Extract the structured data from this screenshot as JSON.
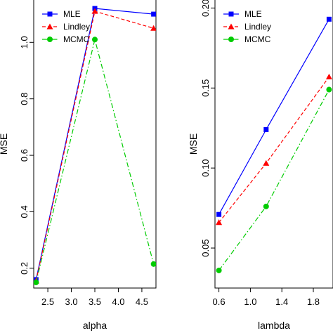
{
  "colors": {
    "MLE": "#0000ff",
    "Lindley": "#ff0000",
    "MCMC": "#00cc00",
    "axis": "#000000"
  },
  "chart_data": [
    {
      "type": "line",
      "xlabel": "alpha",
      "ylabel": "MSE",
      "xlim": [
        2.2,
        4.8
      ],
      "ylim": [
        0.13,
        1.15
      ],
      "xticks": [
        "2.5",
        "3.0",
        "3.5",
        "4.0",
        "4.5"
      ],
      "yticks": [
        "0.2",
        "0.4",
        "0.6",
        "0.8",
        "1.0"
      ],
      "x": [
        2.25,
        3.5,
        4.75
      ],
      "series": [
        {
          "name": "MLE",
          "values": [
            0.16,
            1.12,
            1.1
          ],
          "marker": "square",
          "line": "solid"
        },
        {
          "name": "Lindley",
          "values": [
            0.155,
            1.11,
            1.05
          ],
          "marker": "triangle",
          "line": "dashed"
        },
        {
          "name": "MCMC",
          "values": [
            0.15,
            1.01,
            0.215
          ],
          "marker": "circle",
          "line": "dashdot"
        }
      ],
      "legend": "top-left",
      "grid": false
    },
    {
      "type": "line",
      "xlabel": "lambda",
      "ylabel": "MSE",
      "xlim": [
        0.55,
        2.05
      ],
      "ylim": [
        0.025,
        0.205
      ],
      "xticks": [
        "0.6",
        "1.0",
        "1.4",
        "1.8"
      ],
      "yticks": [
        "0.05",
        "0.10",
        "0.15",
        "0.20"
      ],
      "x": [
        0.6,
        1.2,
        2.0
      ],
      "series": [
        {
          "name": "MLE",
          "values": [
            0.071,
            0.124,
            0.193
          ],
          "marker": "square",
          "line": "solid"
        },
        {
          "name": "Lindley",
          "values": [
            0.066,
            0.103,
            0.157
          ],
          "marker": "triangle",
          "line": "dashed"
        },
        {
          "name": "MCMC",
          "values": [
            0.036,
            0.076,
            0.149
          ],
          "marker": "circle",
          "line": "dashdot"
        }
      ],
      "legend": "top-left",
      "grid": false
    }
  ]
}
